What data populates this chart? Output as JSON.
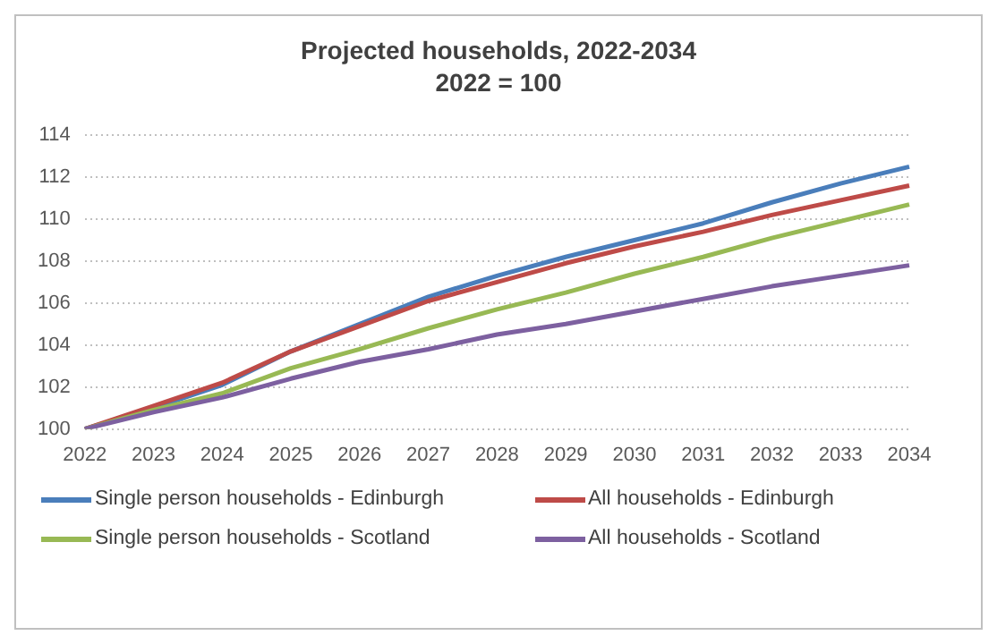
{
  "chart_data": {
    "type": "line",
    "title": "Projected households, 2022-2034",
    "subtitle": "2022 = 100",
    "categories": [
      "2022",
      "2023",
      "2024",
      "2025",
      "2026",
      "2027",
      "2028",
      "2029",
      "2030",
      "2031",
      "2032",
      "2033",
      "2034"
    ],
    "series": [
      {
        "name": "Single person households - Edinburgh",
        "color": "#4a7ebb",
        "values": [
          100,
          101.0,
          102.1,
          103.7,
          105.0,
          106.3,
          107.3,
          108.2,
          109.0,
          109.8,
          110.8,
          111.7,
          112.5
        ]
      },
      {
        "name": "All households - Edinburgh",
        "color": "#be4b48",
        "values": [
          100,
          101.1,
          102.2,
          103.7,
          104.9,
          106.1,
          107.0,
          107.9,
          108.7,
          109.4,
          110.2,
          110.9,
          111.6
        ]
      },
      {
        "name": "Single person households - Scotland",
        "color": "#98b954",
        "values": [
          100,
          100.9,
          101.7,
          102.9,
          103.8,
          104.8,
          105.7,
          106.5,
          107.4,
          108.2,
          109.1,
          109.9,
          110.7
        ]
      },
      {
        "name": "All households - Scotland",
        "color": "#7d60a0",
        "values": [
          100,
          100.8,
          101.5,
          102.4,
          103.2,
          103.8,
          104.5,
          105.0,
          105.6,
          106.2,
          106.8,
          107.3,
          107.8
        ]
      }
    ],
    "ylim": [
      100,
      114
    ],
    "yticks": [
      100,
      102,
      104,
      106,
      108,
      110,
      112,
      114
    ],
    "grid": "y",
    "legend": "bottom",
    "line_style": "solid",
    "marker": "none"
  }
}
